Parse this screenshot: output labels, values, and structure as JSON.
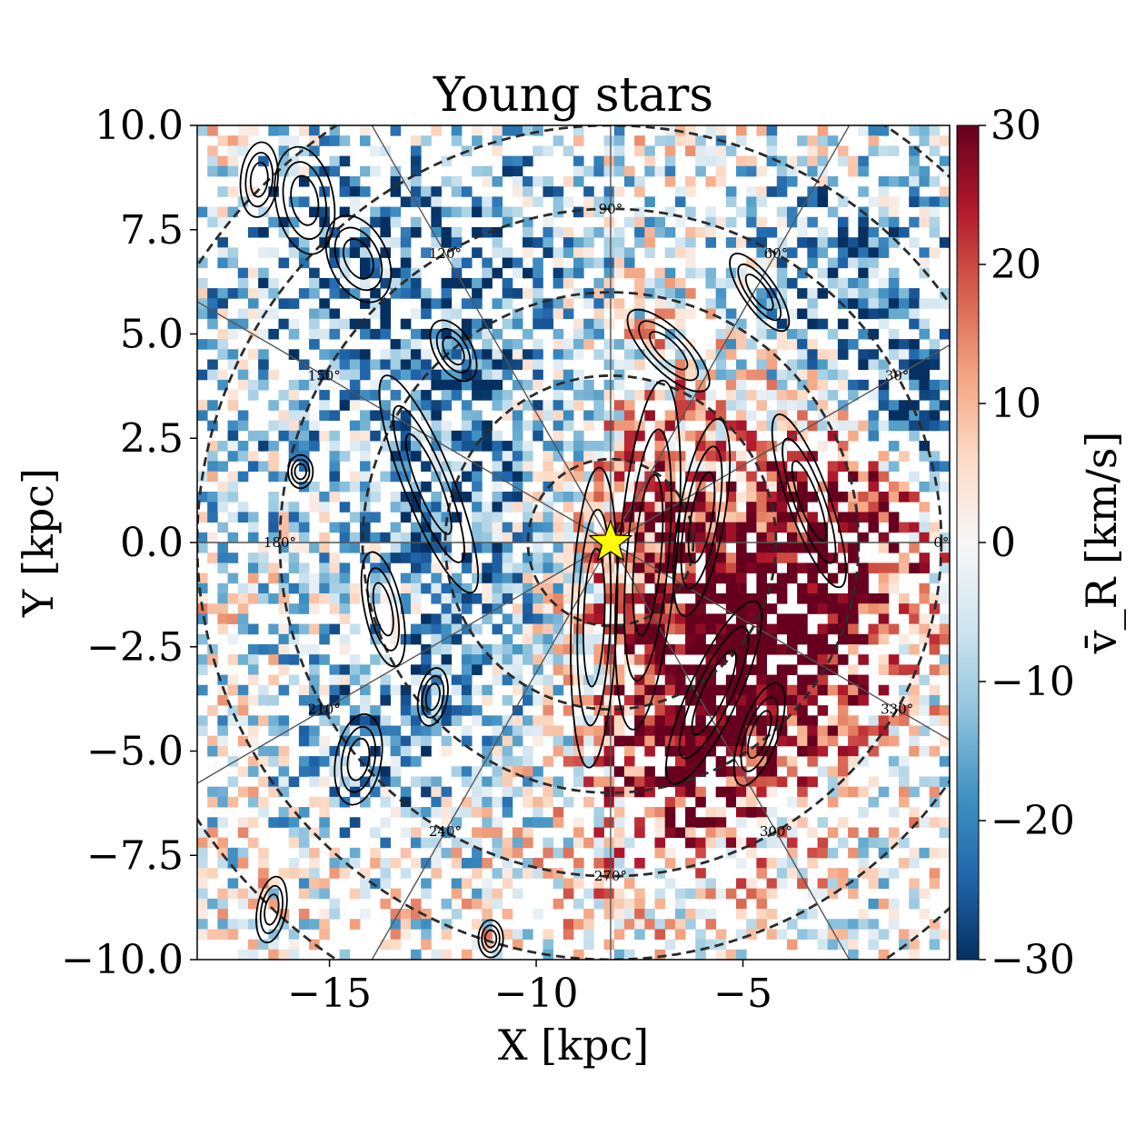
{
  "chart_data": {
    "type": "heatmap",
    "title": "Young stars",
    "xlabel": "X [kpc]",
    "ylabel": "Y [kpc]",
    "xlim": [
      -18.2,
      0.0
    ],
    "ylim": [
      -10.0,
      10.0
    ],
    "x_ticks": [
      -15,
      -10,
      -5
    ],
    "x_tick_labels": [
      "−15",
      "−10",
      "−5"
    ],
    "y_ticks": [
      10.0,
      7.5,
      5.0,
      2.5,
      0.0,
      -2.5,
      -5.0,
      -7.5,
      -10.0
    ],
    "y_tick_labels": [
      "10.0",
      "7.5",
      "5.0",
      "2.5",
      "0.0",
      "−2.5",
      "−5.0",
      "−7.5",
      "−10.0"
    ],
    "colorbar": {
      "label": "v̄_R [km/s]",
      "cmap": "RdBu_r",
      "range": [
        -30,
        30
      ],
      "ticks": [
        30,
        20,
        10,
        0,
        -10,
        -20,
        -30
      ],
      "tick_labels": [
        "30",
        "20",
        "10",
        "0",
        "−10",
        "−20",
        "−30"
      ],
      "colors": [
        "#053061",
        "#2166ac",
        "#4393c3",
        "#92c5de",
        "#d1e5f0",
        "#f7f7f7",
        "#fddbc7",
        "#f4a582",
        "#d6604d",
        "#b2182b",
        "#67001f"
      ]
    },
    "sun_position": [
      -8.2,
      0.0
    ],
    "circle_radii": [
      2,
      4,
      6,
      8,
      10,
      12
    ],
    "azimuth_labels": [
      "0°",
      "30°",
      "60°",
      "90°",
      "120°",
      "150°",
      "180°",
      "210°",
      "240°",
      "270°",
      "300°",
      "330°"
    ],
    "azimuth_angles": [
      0,
      30,
      60,
      90,
      120,
      150,
      180,
      210,
      240,
      270,
      300,
      330
    ],
    "velocity_features": [
      {
        "x": -5.5,
        "y": -2.6,
        "sx": 1.6,
        "sy": 2.4,
        "v": 30
      },
      {
        "x": -2.6,
        "y": 0.4,
        "sx": 1.4,
        "sy": 2.2,
        "v": 30
      },
      {
        "x": -7.2,
        "y": -0.4,
        "sx": 1.4,
        "sy": 3.2,
        "v": 14
      },
      {
        "x": -3.6,
        "y": -2.8,
        "sx": 1.3,
        "sy": 1.8,
        "v": 18
      },
      {
        "x": -6.6,
        "y": -5.6,
        "sx": 1.1,
        "sy": 1.2,
        "v": 22
      },
      {
        "x": -5.5,
        "y": 4.0,
        "sx": 1.8,
        "sy": 1.8,
        "v": 6
      },
      {
        "x": -2.5,
        "y": 5.8,
        "sx": 2.5,
        "sy": 2.6,
        "v": -20
      },
      {
        "x": -0.6,
        "y": 3.0,
        "sx": 1.0,
        "sy": 0.9,
        "v": -30
      },
      {
        "x": -12.0,
        "y": 1.5,
        "sx": 2.3,
        "sy": 4.5,
        "v": -16
      },
      {
        "x": -14.5,
        "y": 7.5,
        "sx": 2.6,
        "sy": 2.3,
        "v": -14
      },
      {
        "x": -14.0,
        "y": -5.0,
        "sx": 2.0,
        "sy": 1.8,
        "v": -14
      },
      {
        "x": -17.0,
        "y": 3.0,
        "sx": 1.6,
        "sy": 2.5,
        "v": -8
      },
      {
        "x": -10.0,
        "y": 7.5,
        "sx": 2.0,
        "sy": 2.0,
        "v": -6
      },
      {
        "x": -8.5,
        "y": -8.5,
        "sx": 2.0,
        "sy": 1.5,
        "v": 4
      }
    ],
    "contour_ellipses": [
      {
        "x": -16.7,
        "y": 8.7,
        "rx": 0.45,
        "ry": 0.9,
        "rot": 5
      },
      {
        "x": -15.6,
        "y": 8.2,
        "rx": 0.7,
        "ry": 1.3,
        "rot": -10
      },
      {
        "x": -14.3,
        "y": 6.8,
        "rx": 0.7,
        "ry": 1.1,
        "rot": -25
      },
      {
        "x": -12.0,
        "y": 4.6,
        "rx": 0.45,
        "ry": 0.8,
        "rot": -30
      },
      {
        "x": -12.6,
        "y": 1.4,
        "rx": 0.6,
        "ry": 2.8,
        "rot": -22
      },
      {
        "x": -13.7,
        "y": -1.6,
        "rx": 0.45,
        "ry": 1.4,
        "rot": -12
      },
      {
        "x": -15.7,
        "y": 1.7,
        "rx": 0.3,
        "ry": 0.4,
        "rot": 0
      },
      {
        "x": -8.6,
        "y": -1.8,
        "rx": 0.55,
        "ry": 3.6,
        "rot": 2
      },
      {
        "x": -7.3,
        "y": -0.3,
        "rx": 0.7,
        "ry": 4.2,
        "rot": 5
      },
      {
        "x": -6.0,
        "y": 0.6,
        "rx": 0.55,
        "ry": 2.4,
        "rot": 10
      },
      {
        "x": -5.7,
        "y": -3.6,
        "rx": 0.6,
        "ry": 2.4,
        "rot": 25
      },
      {
        "x": -4.6,
        "y": -4.6,
        "rx": 0.45,
        "ry": 1.3,
        "rot": 20
      },
      {
        "x": -6.8,
        "y": 4.6,
        "rx": 0.5,
        "ry": 1.3,
        "rot": -45
      },
      {
        "x": -4.6,
        "y": 6.0,
        "rx": 0.4,
        "ry": 1.1,
        "rot": -35
      },
      {
        "x": -3.4,
        "y": 1.0,
        "rx": 0.5,
        "ry": 2.2,
        "rot": -20
      },
      {
        "x": -14.3,
        "y": -5.2,
        "rx": 0.55,
        "ry": 1.1,
        "rot": 10
      },
      {
        "x": -16.4,
        "y": -8.8,
        "rx": 0.35,
        "ry": 0.8,
        "rot": 10
      },
      {
        "x": -11.1,
        "y": -9.5,
        "rx": 0.3,
        "ry": 0.45,
        "rot": 0
      },
      {
        "x": -12.5,
        "y": -3.7,
        "rx": 0.35,
        "ry": 0.7,
        "rot": 10
      }
    ]
  }
}
